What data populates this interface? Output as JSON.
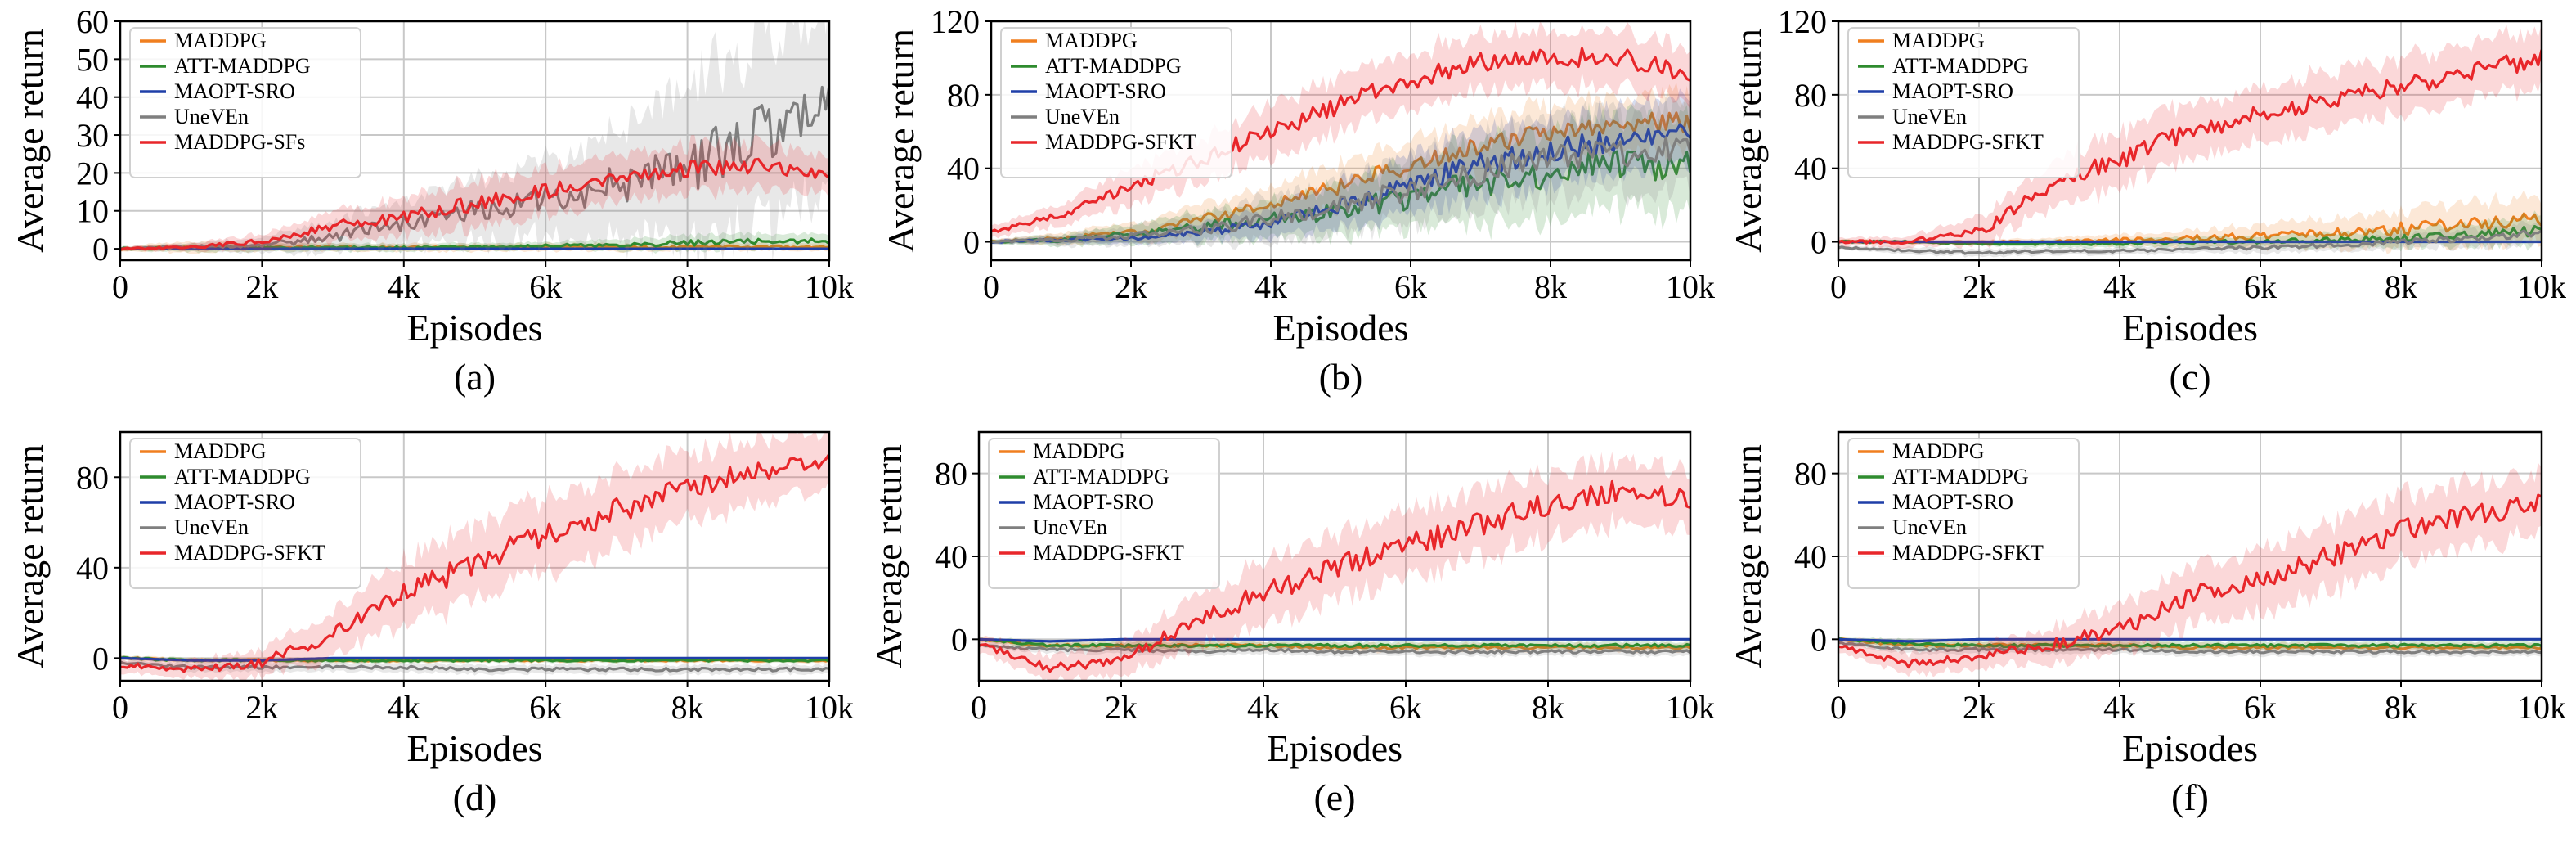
{
  "chart_data": [
    {
      "type": "line",
      "panel_label": "(a)",
      "xlabel": "Episodes",
      "ylabel": "Average return",
      "xlim": [
        0,
        10000
      ],
      "ylim": [
        -3,
        60
      ],
      "xticks": [
        "0",
        "2k",
        "4k",
        "6k",
        "8k",
        "10k"
      ],
      "yticks": [
        0,
        10,
        20,
        30,
        40,
        50,
        60
      ],
      "grid": true,
      "legend_position": "top-left",
      "x": [
        0,
        1000,
        2000,
        3000,
        4000,
        5000,
        6000,
        7000,
        8000,
        9000,
        10000
      ],
      "series": [
        {
          "name": "MADDPG",
          "color": "#f07f1f",
          "values": [
            0,
            0.5,
            0.3,
            0.5,
            0.3,
            0.3,
            0.4,
            0.4,
            0.5,
            0.5,
            0.5
          ],
          "band": [
            0.5,
            1.5,
            1,
            1,
            1,
            1,
            1,
            1,
            1,
            1,
            1
          ]
        },
        {
          "name": "ATT-MADDPG",
          "color": "#2e8b2e",
          "values": [
            0,
            0.2,
            0.3,
            0.3,
            0.3,
            0.5,
            0.8,
            1,
            1.5,
            2,
            2
          ],
          "band": [
            0.5,
            1,
            1,
            1,
            1,
            1,
            1,
            1.5,
            2,
            2,
            2
          ]
        },
        {
          "name": "MAOPT-SRO",
          "color": "#1f3fa8",
          "values": [
            0,
            0,
            0,
            0,
            0,
            0,
            0,
            0,
            0,
            0,
            0
          ],
          "band": [
            0,
            0,
            0,
            0,
            0,
            0,
            0,
            0,
            0,
            0,
            0
          ]
        },
        {
          "name": "UneVEn",
          "color": "#7f7f7f",
          "values": [
            0,
            0.5,
            1,
            3,
            7,
            10,
            13,
            17,
            22,
            30,
            40
          ],
          "band": [
            0.5,
            1,
            2,
            4,
            6,
            8,
            10,
            14,
            20,
            25,
            22
          ]
        },
        {
          "name": "MADDPG-SFs",
          "color": "#e8262a",
          "values": [
            0,
            0.3,
            2,
            6,
            8,
            12,
            15,
            18,
            21,
            22,
            20
          ],
          "band": [
            0.5,
            1,
            2,
            4,
            5,
            6,
            6,
            6,
            6,
            6,
            5
          ]
        }
      ]
    },
    {
      "type": "line",
      "panel_label": "(b)",
      "xlabel": "Episodes",
      "ylabel": "Average return",
      "xlim": [
        0,
        10000
      ],
      "ylim": [
        -10,
        120
      ],
      "xticks": [
        "0",
        "2k",
        "4k",
        "6k",
        "8k",
        "10k"
      ],
      "yticks": [
        0,
        40,
        80,
        120
      ],
      "grid": true,
      "legend_position": "top-left",
      "x": [
        0,
        1000,
        2000,
        3000,
        4000,
        5000,
        6000,
        7000,
        8000,
        9000,
        10000
      ],
      "series": [
        {
          "name": "MADDPG",
          "color": "#f07f1f",
          "values": [
            0,
            2,
            5,
            12,
            20,
            30,
            42,
            52,
            60,
            65,
            65
          ],
          "band": [
            1,
            3,
            5,
            8,
            10,
            12,
            14,
            15,
            15,
            15,
            15
          ]
        },
        {
          "name": "ATT-MADDPG",
          "color": "#2e8b2e",
          "values": [
            0,
            1,
            4,
            8,
            12,
            17,
            24,
            32,
            38,
            42,
            42
          ],
          "band": [
            1,
            3,
            5,
            8,
            10,
            14,
            18,
            22,
            24,
            25,
            25
          ]
        },
        {
          "name": "MAOPT-SRO",
          "color": "#1f3fa8",
          "values": [
            0,
            1,
            2,
            5,
            10,
            20,
            32,
            42,
            50,
            56,
            60
          ],
          "band": [
            1,
            2,
            3,
            5,
            8,
            12,
            15,
            18,
            18,
            18,
            18
          ]
        },
        {
          "name": "UneVEn",
          "color": "#7f7f7f",
          "values": [
            0,
            1,
            3,
            7,
            12,
            20,
            28,
            38,
            45,
            48,
            50
          ],
          "band": [
            1,
            3,
            5,
            8,
            12,
            15,
            18,
            20,
            22,
            22,
            22
          ]
        },
        {
          "name": "MADDPG-SFKT",
          "color": "#e8262a",
          "values": [
            5,
            15,
            30,
            45,
            60,
            75,
            88,
            98,
            100,
            100,
            92
          ],
          "band": [
            3,
            6,
            10,
            12,
            14,
            15,
            15,
            15,
            15,
            15,
            15
          ]
        }
      ]
    },
    {
      "type": "line",
      "panel_label": "(c)",
      "xlabel": "Episodes",
      "ylabel": "Average return",
      "xlim": [
        0,
        10000
      ],
      "ylim": [
        -10,
        120
      ],
      "xticks": [
        "0",
        "2k",
        "4k",
        "6k",
        "8k",
        "10k"
      ],
      "yticks": [
        0,
        40,
        80,
        120
      ],
      "grid": true,
      "legend_position": "top-left",
      "x": [
        0,
        1000,
        2000,
        3000,
        4000,
        5000,
        6000,
        7000,
        8000,
        9000,
        10000
      ],
      "series": [
        {
          "name": "MADDPG",
          "color": "#f07f1f",
          "values": [
            0,
            0,
            0,
            0,
            1,
            2,
            3,
            5,
            7,
            10,
            12
          ],
          "band": [
            1,
            1,
            1,
            2,
            3,
            4,
            6,
            8,
            10,
            12,
            12
          ]
        },
        {
          "name": "ATT-MADDPG",
          "color": "#2e8b2e",
          "values": [
            0,
            0,
            -1,
            -1,
            -1,
            0,
            0,
            1,
            2,
            4,
            6
          ],
          "band": [
            1,
            1,
            1,
            2,
            2,
            3,
            3,
            4,
            5,
            6,
            8
          ]
        },
        {
          "name": "MAOPT-SRO",
          "color": "#1f3fa8",
          "values": [
            0,
            0,
            0,
            0,
            0,
            0,
            0,
            0,
            0,
            0,
            0
          ],
          "band": [
            0,
            0,
            0,
            0,
            0,
            0,
            0,
            0,
            0,
            0,
            0
          ]
        },
        {
          "name": "UneVEn",
          "color": "#7f7f7f",
          "values": [
            -3,
            -5,
            -6,
            -5,
            -5,
            -4,
            -3,
            -2,
            0,
            2,
            5
          ],
          "band": [
            1,
            2,
            2,
            2,
            2,
            2,
            3,
            3,
            4,
            5,
            6
          ]
        },
        {
          "name": "MADDPG-SFKT",
          "color": "#e8262a",
          "values": [
            0,
            0,
            5,
            30,
            45,
            60,
            70,
            78,
            85,
            92,
            100
          ],
          "band": [
            2,
            3,
            8,
            12,
            15,
            15,
            15,
            15,
            15,
            15,
            15
          ]
        }
      ]
    },
    {
      "type": "line",
      "panel_label": "(d)",
      "xlabel": "Episodes",
      "ylabel": "Average return",
      "xlim": [
        0,
        10000
      ],
      "ylim": [
        -10,
        100
      ],
      "xticks": [
        "0",
        "2k",
        "4k",
        "6k",
        "8k",
        "10k"
      ],
      "yticks": [
        0,
        40,
        80
      ],
      "grid": true,
      "legend_position": "top-left",
      "x": [
        0,
        1000,
        2000,
        3000,
        4000,
        5000,
        6000,
        7000,
        8000,
        9000,
        10000
      ],
      "series": [
        {
          "name": "MADDPG",
          "color": "#f07f1f",
          "values": [
            0,
            -1,
            -1,
            -1,
            -1,
            -1,
            -1,
            -1,
            -1,
            -1,
            -1
          ],
          "band": [
            1,
            1,
            1,
            1,
            1,
            1,
            1,
            1,
            1,
            1,
            1
          ]
        },
        {
          "name": "ATT-MADDPG",
          "color": "#2e8b2e",
          "values": [
            0,
            -1,
            -1,
            -1,
            -1,
            -1,
            -1,
            -1,
            -1,
            -1,
            -1
          ],
          "band": [
            1,
            1,
            1,
            1,
            1,
            1,
            1,
            1,
            1,
            1,
            1
          ]
        },
        {
          "name": "MAOPT-SRO",
          "color": "#1f3fa8",
          "values": [
            0,
            -1,
            -1,
            0,
            0,
            0,
            0,
            0,
            0,
            0,
            0
          ],
          "band": [
            0,
            0,
            0,
            0,
            0,
            0,
            0,
            0,
            0,
            0,
            0
          ]
        },
        {
          "name": "UneVEn",
          "color": "#7f7f7f",
          "values": [
            -2,
            -4,
            -4,
            -4,
            -4,
            -5,
            -5,
            -5,
            -5,
            -5,
            -5
          ],
          "band": [
            1,
            2,
            2,
            2,
            2,
            2,
            2,
            2,
            2,
            2,
            2
          ]
        },
        {
          "name": "MADDPG-SFKT",
          "color": "#e8262a",
          "values": [
            -3,
            -5,
            -2,
            10,
            28,
            42,
            55,
            65,
            75,
            83,
            88
          ],
          "band": [
            3,
            4,
            6,
            10,
            14,
            16,
            16,
            16,
            15,
            14,
            12
          ]
        }
      ]
    },
    {
      "type": "line",
      "panel_label": "(e)",
      "xlabel": "Episodes",
      "ylabel": "Average return",
      "xlim": [
        0,
        10000
      ],
      "ylim": [
        -20,
        100
      ],
      "xticks": [
        "0",
        "2k",
        "4k",
        "6k",
        "8k",
        "10k"
      ],
      "yticks": [
        0,
        40,
        80
      ],
      "grid": true,
      "legend_position": "top-left",
      "x": [
        0,
        1000,
        2000,
        3000,
        4000,
        5000,
        6000,
        7000,
        8000,
        9000,
        10000
      ],
      "series": [
        {
          "name": "MADDPG",
          "color": "#f07f1f",
          "values": [
            0,
            -3,
            -3,
            -3,
            -3,
            -4,
            -4,
            -4,
            -4,
            -4,
            -4
          ],
          "band": [
            1,
            2,
            2,
            2,
            2,
            2,
            2,
            2,
            2,
            2,
            2
          ]
        },
        {
          "name": "ATT-MADDPG",
          "color": "#2e8b2e",
          "values": [
            0,
            -3,
            -3,
            -3,
            -3,
            -3,
            -3,
            -3,
            -3,
            -3,
            -3
          ],
          "band": [
            1,
            2,
            2,
            2,
            2,
            2,
            2,
            2,
            2,
            2,
            2
          ]
        },
        {
          "name": "MAOPT-SRO",
          "color": "#1f3fa8",
          "values": [
            0,
            -1,
            0,
            0,
            0,
            0,
            0,
            0,
            0,
            0,
            0
          ],
          "band": [
            0,
            0,
            0,
            0,
            0,
            0,
            0,
            0,
            0,
            0,
            0
          ]
        },
        {
          "name": "UneVEn",
          "color": "#7f7f7f",
          "values": [
            -3,
            -5,
            -5,
            -6,
            -5,
            -6,
            -6,
            -6,
            -6,
            -6,
            -6
          ],
          "band": [
            1,
            2,
            2,
            2,
            2,
            2,
            2,
            2,
            2,
            2,
            2
          ]
        },
        {
          "name": "MADDPG-SFKT",
          "color": "#e8262a",
          "values": [
            -2,
            -14,
            -10,
            8,
            22,
            35,
            45,
            55,
            65,
            72,
            68
          ],
          "band": [
            4,
            6,
            8,
            12,
            15,
            16,
            16,
            16,
            16,
            15,
            15
          ]
        }
      ]
    },
    {
      "type": "line",
      "panel_label": "(f)",
      "xlabel": "Episodes",
      "ylabel": "Average return",
      "xlim": [
        0,
        10000
      ],
      "ylim": [
        -20,
        100
      ],
      "xticks": [
        "0",
        "2k",
        "4k",
        "6k",
        "8k",
        "10k"
      ],
      "yticks": [
        0,
        40,
        80
      ],
      "grid": true,
      "legend_position": "top-left",
      "x": [
        0,
        1000,
        2000,
        3000,
        4000,
        5000,
        6000,
        7000,
        8000,
        9000,
        10000
      ],
      "series": [
        {
          "name": "MADDPG",
          "color": "#f07f1f",
          "values": [
            0,
            -3,
            -3,
            -3,
            -3,
            -4,
            -4,
            -4,
            -4,
            -4,
            -4
          ],
          "band": [
            1,
            2,
            2,
            2,
            2,
            2,
            2,
            2,
            2,
            2,
            2
          ]
        },
        {
          "name": "ATT-MADDPG",
          "color": "#2e8b2e",
          "values": [
            0,
            -2,
            -3,
            -3,
            -3,
            -3,
            -3,
            -3,
            -3,
            -3,
            -3
          ],
          "band": [
            1,
            2,
            2,
            2,
            2,
            2,
            2,
            2,
            2,
            2,
            2
          ]
        },
        {
          "name": "MAOPT-SRO",
          "color": "#1f3fa8",
          "values": [
            0,
            -1,
            0,
            0,
            0,
            0,
            0,
            0,
            0,
            0,
            0
          ],
          "band": [
            0,
            0,
            0,
            0,
            0,
            0,
            0,
            0,
            0,
            0,
            0
          ]
        },
        {
          "name": "UneVEn",
          "color": "#7f7f7f",
          "values": [
            -2,
            -5,
            -5,
            -5,
            -5,
            -6,
            -6,
            -6,
            -6,
            -6,
            -6
          ],
          "band": [
            1,
            2,
            2,
            2,
            2,
            2,
            2,
            2,
            2,
            2,
            2
          ]
        },
        {
          "name": "MADDPG-SFKT",
          "color": "#e8262a",
          "values": [
            -3,
            -12,
            -8,
            -3,
            5,
            20,
            30,
            40,
            52,
            60,
            65
          ],
          "band": [
            3,
            5,
            6,
            8,
            12,
            14,
            15,
            16,
            16,
            15,
            14
          ]
        }
      ]
    }
  ]
}
